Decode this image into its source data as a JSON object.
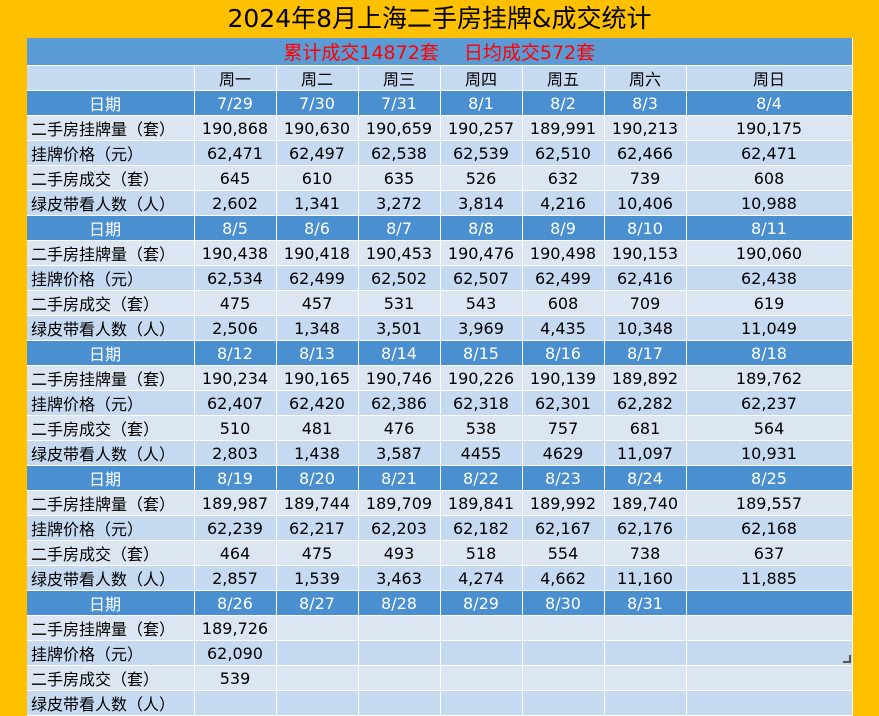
{
  "title": "2024年8月上海二手房挂牌&成交统计",
  "summary": "累计成交14872套　 日均成交572套",
  "weekdays": [
    "周一",
    "周二",
    "周三",
    "周四",
    "周五",
    "周六",
    "周日"
  ],
  "date_label": "日期",
  "metric_labels": [
    "二手房挂牌量（套）",
    "挂牌价格（元）",
    "二手房成交（套）",
    "绿皮带看人数（人）"
  ],
  "weeks": [
    {
      "dates": [
        "7/29",
        "7/30",
        "7/31",
        "8/1",
        "8/2",
        "8/3",
        "8/4"
      ],
      "rows": [
        [
          "190,868",
          "190,630",
          "190,659",
          "190,257",
          "189,991",
          "190,213",
          "190,175"
        ],
        [
          "62,471",
          "62,497",
          "62,538",
          "62,539",
          "62,510",
          "62,466",
          "62,471"
        ],
        [
          "645",
          "610",
          "635",
          "526",
          "632",
          "739",
          "608"
        ],
        [
          "2,602",
          "1,341",
          "3,272",
          "3,814",
          "4,216",
          "10,406",
          "10,988"
        ]
      ]
    },
    {
      "dates": [
        "8/5",
        "8/6",
        "8/7",
        "8/8",
        "8/9",
        "8/10",
        "8/11"
      ],
      "rows": [
        [
          "190,438",
          "190,418",
          "190,453",
          "190,476",
          "190,498",
          "190,153",
          "190,060"
        ],
        [
          "62,534",
          "62,499",
          "62,502",
          "62,507",
          "62,499",
          "62,416",
          "62,438"
        ],
        [
          "475",
          "457",
          "531",
          "543",
          "608",
          "709",
          "619"
        ],
        [
          "2,506",
          "1,348",
          "3,501",
          "3,969",
          "4,435",
          "10,348",
          "11,049"
        ]
      ]
    },
    {
      "dates": [
        "8/12",
        "8/13",
        "8/14",
        "8/15",
        "8/16",
        "8/17",
        "8/18"
      ],
      "rows": [
        [
          "190,234",
          "190,165",
          "190,746",
          "190,226",
          "190,139",
          "189,892",
          "189,762"
        ],
        [
          "62,407",
          "62,420",
          "62,386",
          "62,318",
          "62,301",
          "62,282",
          "62,237"
        ],
        [
          "510",
          "481",
          "476",
          "538",
          "757",
          "681",
          "564"
        ],
        [
          "2,803",
          "1,438",
          "3,587",
          "4455",
          "4629",
          "11,097",
          "10,931"
        ]
      ]
    },
    {
      "dates": [
        "8/19",
        "8/20",
        "8/21",
        "8/22",
        "8/23",
        "8/24",
        "8/25"
      ],
      "rows": [
        [
          "189,987",
          "189,744",
          "189,709",
          "189,841",
          "189,992",
          "189,740",
          "189,557"
        ],
        [
          "62,239",
          "62,217",
          "62,203",
          "62,182",
          "62,167",
          "62,176",
          "62,168"
        ],
        [
          "464",
          "475",
          "493",
          "518",
          "554",
          "738",
          "637"
        ],
        [
          "2,857",
          "1,539",
          "3,463",
          "4,274",
          "4,662",
          "11,160",
          "11,885"
        ]
      ]
    },
    {
      "dates": [
        "8/26",
        "8/27",
        "8/28",
        "8/29",
        "8/30",
        "8/31",
        ""
      ],
      "rows": [
        [
          "189,726",
          "",
          "",
          "",
          "",
          "",
          ""
        ],
        [
          "62,090",
          "",
          "",
          "",
          "",
          "",
          ""
        ],
        [
          "539",
          "",
          "",
          "",
          "",
          "",
          ""
        ],
        [
          "",
          "",
          "",
          "",
          "",
          "",
          ""
        ]
      ]
    }
  ]
}
